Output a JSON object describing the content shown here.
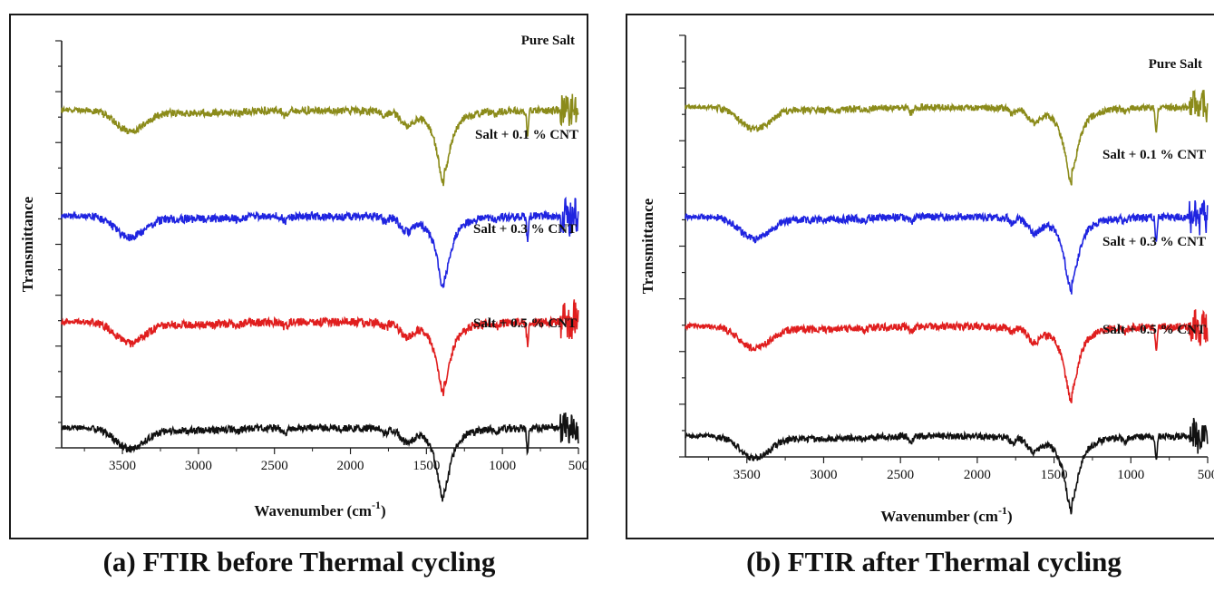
{
  "captions": {
    "a": "(a) FTIR before Thermal cycling",
    "b": "(b) FTIR after Thermal cycling"
  },
  "chart_data": [
    {
      "type": "line",
      "title": "",
      "xlabel": "Wavenumber (cm",
      "xlabel_sup": "-1",
      "xlabel_close": ")",
      "ylabel": "Transmittance",
      "xlim": [
        3900,
        500
      ],
      "x_reversed": true,
      "x_ticks": [
        3500,
        3000,
        2500,
        2000,
        1500,
        1000,
        500
      ],
      "grid": false,
      "series": [
        {
          "name": "Pure Salt",
          "color": "#8b8b1a",
          "baseline": 16.6,
          "depth": 1.45,
          "noise": 0.16
        },
        {
          "name": "Salt + 0.1 % CNT",
          "color": "#1f24e0",
          "baseline": 11.4,
          "depth": 1.45,
          "noise": 0.18
        },
        {
          "name": "Salt + 0.3 % CNT",
          "color": "#e01e1e",
          "baseline": 6.2,
          "depth": 1.45,
          "noise": 0.18
        },
        {
          "name": "Salt + 0.5 % CNT",
          "color": "#111111",
          "baseline": 1.0,
          "depth": 1.45,
          "noise": 0.16
        }
      ]
    },
    {
      "type": "line",
      "title": "",
      "xlabel": "Wavenumber (cm",
      "xlabel_sup": "-1",
      "xlabel_close": ")",
      "ylabel": "Transmittance",
      "xlim": [
        3900,
        500
      ],
      "x_reversed": true,
      "x_ticks": [
        3500,
        3000,
        2500,
        2000,
        1500,
        1000,
        500
      ],
      "grid": false,
      "series": [
        {
          "name": "Pure Salt",
          "color": "#8b8b1a",
          "baseline": 16.6,
          "depth": 1.45,
          "noise": 0.14
        },
        {
          "name": "Salt + 0.1 % CNT",
          "color": "#1f24e0",
          "baseline": 11.4,
          "depth": 1.45,
          "noise": 0.16
        },
        {
          "name": "Salt + 0.3 % CNT",
          "color": "#e01e1e",
          "baseline": 6.2,
          "depth": 1.45,
          "noise": 0.16
        },
        {
          "name": "Salt + 0.5 % CNT",
          "color": "#111111",
          "baseline": 1.0,
          "depth": 1.45,
          "noise": 0.14
        }
      ]
    }
  ]
}
